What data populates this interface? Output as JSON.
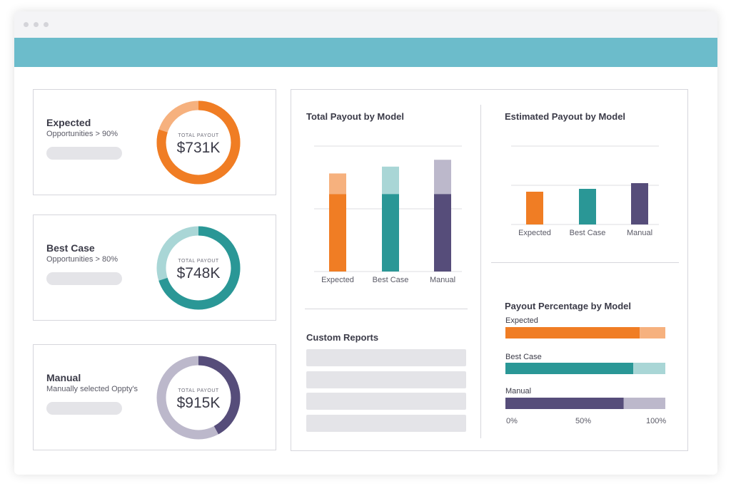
{
  "window": {
    "banner_color": "#6cbccb"
  },
  "colors": {
    "expected": "#f07d24",
    "expected_light": "#f6b17e",
    "best_case": "#2a9796",
    "best_case_light": "#a9d6d6",
    "manual": "#564d7a",
    "manual_light": "#bcb8cb"
  },
  "kpis": [
    {
      "title": "Expected",
      "subtitle": "Opportunities > 90%",
      "caption": "TOTAL PAYOUT",
      "value": "$731K",
      "primary_fraction": 0.8,
      "color": "#f07d24",
      "light": "#f6b17e"
    },
    {
      "title": "Best Case",
      "subtitle": "Opportunities > 80%",
      "caption": "TOTAL PAYOUT",
      "value": "$748K",
      "primary_fraction": 0.7,
      "color": "#2a9796",
      "light": "#a9d6d6"
    },
    {
      "title": "Manual",
      "subtitle": "Manually selected Oppty's",
      "caption": "TOTAL PAYOUT",
      "value": "$915K",
      "primary_fraction": 0.42,
      "color": "#564d7a",
      "light": "#bcb8cb"
    }
  ],
  "total_payout": {
    "title": "Total Payout by Model",
    "chart_data": {
      "type": "bar",
      "categories": [
        "Expected",
        "Best Case",
        "Manual"
      ],
      "series": [
        {
          "values": [
            68,
            68,
            68
          ]
        },
        {
          "values": [
            18,
            24,
            30
          ]
        }
      ],
      "stacked": true,
      "ylim": [
        0,
        110
      ]
    }
  },
  "estimated_payout": {
    "title": "Estimated Payout by Model",
    "chart_data": {
      "type": "bar",
      "categories": [
        "Expected",
        "Best Case",
        "Manual"
      ],
      "values": [
        46,
        50,
        58
      ],
      "ylim": [
        0,
        110
      ]
    }
  },
  "custom_reports": {
    "title": "Custom Reports",
    "rows": 4
  },
  "payout_percentage": {
    "title": "Payout Percentage by Model",
    "chart_data": {
      "type": "bar",
      "orientation": "horizontal",
      "categories": [
        "Expected",
        "Best Case",
        "Manual"
      ],
      "series": [
        {
          "values": [
            84,
            80,
            74
          ]
        },
        {
          "values": [
            16,
            20,
            26
          ]
        }
      ],
      "stacked": true,
      "xlim": [
        0,
        100
      ],
      "x_ticks": [
        "0%",
        "50%",
        "100%"
      ]
    }
  }
}
